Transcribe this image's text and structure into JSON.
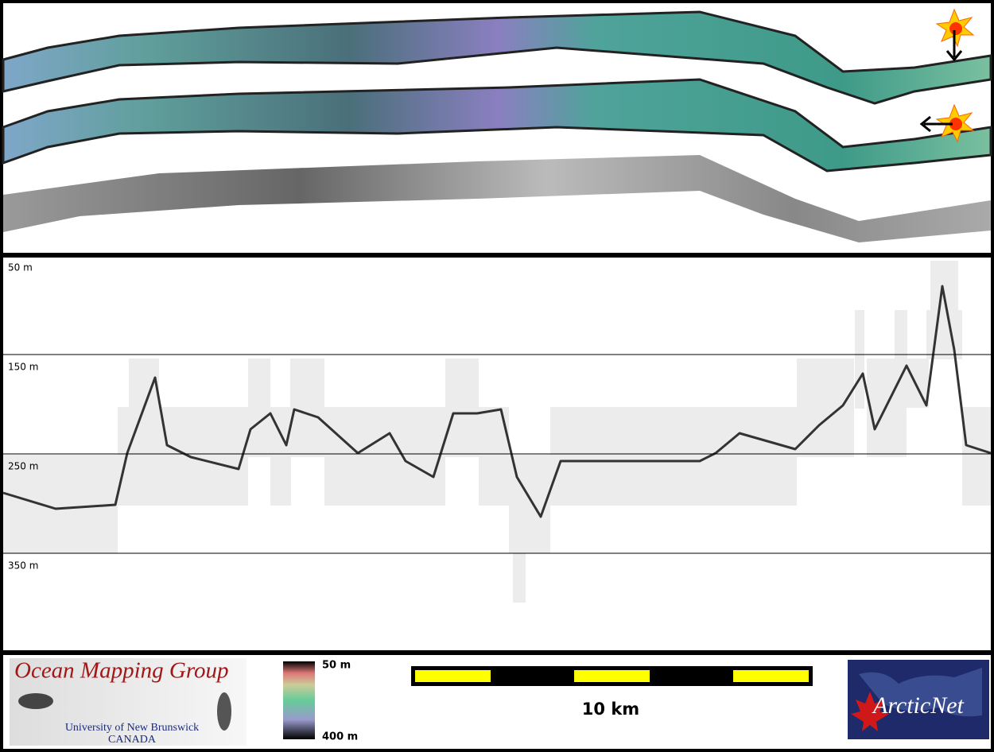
{
  "profile": {
    "depth_labels": [
      "50 m",
      "150 m",
      "250 m",
      "350 m"
    ]
  },
  "footer": {
    "logo": {
      "title": "Ocean Mapping Group",
      "university": "University of New Brunswick",
      "country": "CANADA"
    },
    "colorbar": {
      "top_label": "50 m",
      "bottom_label": "400 m"
    },
    "scale_bar": {
      "label": "10 km"
    },
    "partner_logo": "ArcticNet"
  }
}
